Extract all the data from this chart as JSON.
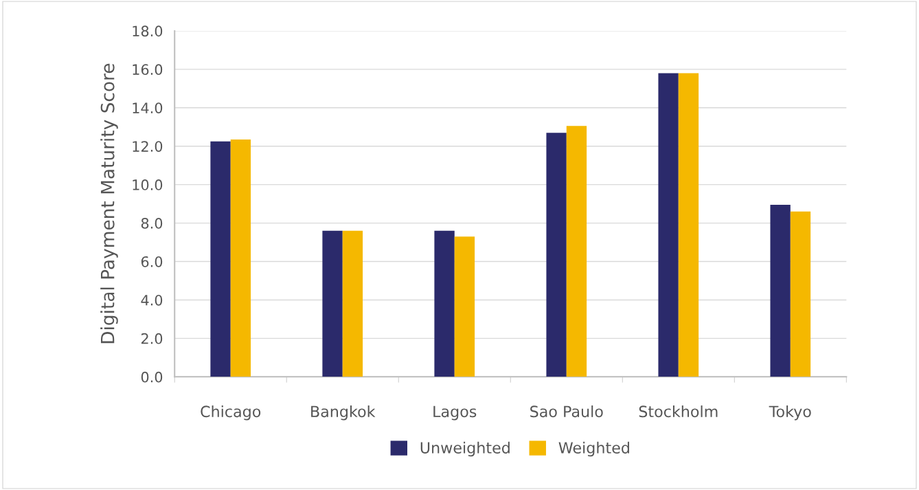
{
  "chart_data": {
    "type": "bar",
    "ylabel": "Digital Payment Maturity Score",
    "categories": [
      "Chicago",
      "Bangkok",
      "Lagos",
      "Sao Paulo",
      "Stockholm",
      "Tokyo"
    ],
    "series": [
      {
        "name": "Unweighted",
        "color": "#2b2a6b",
        "values": [
          12.25,
          7.6,
          7.6,
          12.7,
          15.8,
          8.95
        ]
      },
      {
        "name": "Weighted",
        "color": "#f5b800",
        "values": [
          12.35,
          7.6,
          7.3,
          13.05,
          15.8,
          8.6
        ]
      }
    ],
    "ylim": [
      0,
      18
    ],
    "yticks": [
      {
        "value": 0,
        "label": "0.0"
      },
      {
        "value": 2,
        "label": "2.0"
      },
      {
        "value": 4,
        "label": "4.0"
      },
      {
        "value": 6,
        "label": "6.0"
      },
      {
        "value": 8,
        "label": "8.0"
      },
      {
        "value": 10,
        "label": "10.0"
      },
      {
        "value": 12,
        "label": "12.0"
      },
      {
        "value": 14,
        "label": "14.0"
      },
      {
        "value": 16,
        "label": "16.0"
      },
      {
        "value": 18,
        "label": "18.0"
      }
    ],
    "grid": "y",
    "legend": "bottom"
  }
}
